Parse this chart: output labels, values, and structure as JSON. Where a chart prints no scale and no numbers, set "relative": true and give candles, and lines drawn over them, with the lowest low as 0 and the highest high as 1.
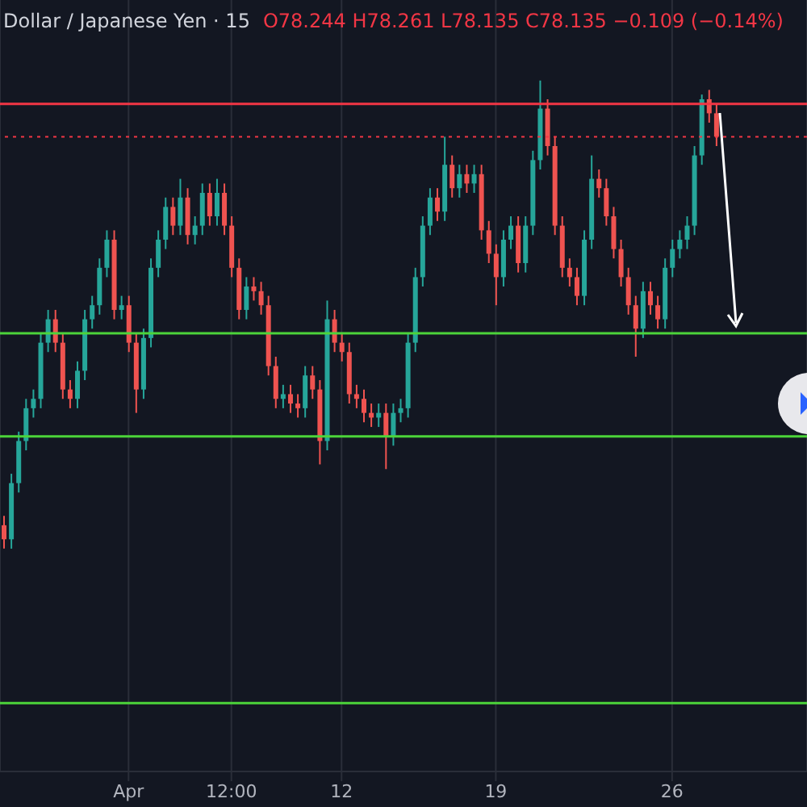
{
  "chart_data": {
    "type": "candlestick",
    "title": "Dollar / Japanese Yen · 15",
    "annotations": [
      "O78.244 H78.261 L78.135 C78.135 −0.109 (−0.14%)"
    ],
    "relative": true,
    "grid": "x",
    "categories": [
      null,
      null,
      null,
      null,
      null,
      null,
      null,
      null,
      null,
      null,
      null,
      null,
      null,
      null,
      null,
      null,
      null,
      "Apr",
      null,
      null,
      null,
      null,
      null,
      null,
      null,
      null,
      null,
      null,
      null,
      null,
      null,
      "12:00",
      null,
      null,
      null,
      null,
      null,
      null,
      null,
      null,
      null,
      null,
      null,
      null,
      null,
      null,
      "12",
      null,
      null,
      null,
      null,
      null,
      null,
      null,
      null,
      null,
      null,
      null,
      null,
      null,
      null,
      null,
      null,
      null,
      null,
      null,
      null,
      "19",
      null,
      null,
      null,
      null,
      null,
      null,
      null,
      null,
      null,
      null,
      null,
      null,
      null,
      null,
      null,
      null,
      null,
      null,
      null,
      null,
      null,
      null,
      null,
      "26",
      null,
      null,
      null,
      null,
      null,
      null
    ],
    "ohlc": [
      [
        0.05,
        0.07,
        0,
        0.02
      ],
      [
        0.02,
        0.16,
        0,
        0.14
      ],
      [
        0.14,
        0.25,
        0.12,
        0.23
      ],
      [
        0.23,
        0.32,
        0.21,
        0.3
      ],
      [
        0.3,
        0.34,
        0.28,
        0.32
      ],
      [
        0.32,
        0.46,
        0.3,
        0.44
      ],
      [
        0.44,
        0.51,
        0.42,
        0.49
      ],
      [
        0.49,
        0.51,
        0.42,
        0.44
      ],
      [
        0.44,
        0.46,
        0.32,
        0.34
      ],
      [
        0.34,
        0.36,
        0.3,
        0.32
      ],
      [
        0.32,
        0.4,
        0.3,
        0.38
      ],
      [
        0.38,
        0.51,
        0.36,
        0.49
      ],
      [
        0.49,
        0.54,
        0.47,
        0.52
      ],
      [
        0.52,
        0.62,
        0.5,
        0.6
      ],
      [
        0.6,
        0.68,
        0.58,
        0.66
      ],
      [
        0.66,
        0.68,
        0.49,
        0.51
      ],
      [
        0.51,
        0.54,
        0.49,
        0.52
      ],
      [
        0.52,
        0.54,
        0.42,
        0.44
      ],
      [
        0.44,
        0.46,
        0.29,
        0.34
      ],
      [
        0.34,
        0.47,
        0.32,
        0.45
      ],
      [
        0.45,
        0.62,
        0.43,
        0.6
      ],
      [
        0.6,
        0.68,
        0.58,
        0.66
      ],
      [
        0.66,
        0.75,
        0.64,
        0.73
      ],
      [
        0.73,
        0.75,
        0.67,
        0.69
      ],
      [
        0.69,
        0.79,
        0.67,
        0.75
      ],
      [
        0.75,
        0.77,
        0.65,
        0.67
      ],
      [
        0.67,
        0.71,
        0.65,
        0.69
      ],
      [
        0.69,
        0.78,
        0.67,
        0.76
      ],
      [
        0.76,
        0.78,
        0.69,
        0.71
      ],
      [
        0.71,
        0.79,
        0.69,
        0.76
      ],
      [
        0.76,
        0.78,
        0.67,
        0.69
      ],
      [
        0.69,
        0.71,
        0.58,
        0.6
      ],
      [
        0.6,
        0.62,
        0.49,
        0.51
      ],
      [
        0.51,
        0.58,
        0.49,
        0.56
      ],
      [
        0.56,
        0.58,
        0.53,
        0.55
      ],
      [
        0.55,
        0.57,
        0.5,
        0.52
      ],
      [
        0.52,
        0.54,
        0.37,
        0.39
      ],
      [
        0.39,
        0.41,
        0.3,
        0.32
      ],
      [
        0.32,
        0.35,
        0.3,
        0.33
      ],
      [
        0.33,
        0.35,
        0.29,
        0.31
      ],
      [
        0.31,
        0.33,
        0.28,
        0.3
      ],
      [
        0.3,
        0.39,
        0.28,
        0.37
      ],
      [
        0.37,
        0.39,
        0.32,
        0.34
      ],
      [
        0.34,
        0.36,
        0.18,
        0.23
      ],
      [
        0.23,
        0.53,
        0.21,
        0.49
      ],
      [
        0.49,
        0.51,
        0.42,
        0.44
      ],
      [
        0.44,
        0.46,
        0.4,
        0.42
      ],
      [
        0.42,
        0.44,
        0.31,
        0.33
      ],
      [
        0.33,
        0.35,
        0.3,
        0.32
      ],
      [
        0.32,
        0.34,
        0.27,
        0.29
      ],
      [
        0.29,
        0.31,
        0.26,
        0.28
      ],
      [
        0.28,
        0.31,
        0.26,
        0.29
      ],
      [
        0.29,
        0.31,
        0.17,
        0.24
      ],
      [
        0.24,
        0.31,
        0.22,
        0.29
      ],
      [
        0.29,
        0.32,
        0.27,
        0.3
      ],
      [
        0.3,
        0.46,
        0.28,
        0.44
      ],
      [
        0.44,
        0.6,
        0.42,
        0.58
      ],
      [
        0.58,
        0.71,
        0.56,
        0.69
      ],
      [
        0.69,
        0.77,
        0.67,
        0.75
      ],
      [
        0.75,
        0.77,
        0.7,
        0.72
      ],
      [
        0.72,
        0.88,
        0.7,
        0.82
      ],
      [
        0.82,
        0.84,
        0.75,
        0.77
      ],
      [
        0.77,
        0.82,
        0.75,
        0.8
      ],
      [
        0.8,
        0.82,
        0.76,
        0.78
      ],
      [
        0.78,
        0.82,
        0.76,
        0.8
      ],
      [
        0.8,
        0.82,
        0.66,
        0.68
      ],
      [
        0.68,
        0.7,
        0.61,
        0.63
      ],
      [
        0.63,
        0.65,
        0.52,
        0.58
      ],
      [
        0.58,
        0.68,
        0.56,
        0.66
      ],
      [
        0.66,
        0.71,
        0.64,
        0.69
      ],
      [
        0.69,
        0.71,
        0.59,
        0.61
      ],
      [
        0.61,
        0.71,
        0.59,
        0.69
      ],
      [
        0.69,
        0.85,
        0.67,
        0.83
      ],
      [
        0.83,
        1,
        0.81,
        0.94
      ],
      [
        0.94,
        0.96,
        0.84,
        0.86
      ],
      [
        0.86,
        0.88,
        0.67,
        0.69
      ],
      [
        0.69,
        0.71,
        0.58,
        0.6
      ],
      [
        0.6,
        0.62,
        0.56,
        0.58
      ],
      [
        0.58,
        0.6,
        0.52,
        0.54
      ],
      [
        0.54,
        0.68,
        0.52,
        0.66
      ],
      [
        0.66,
        0.84,
        0.64,
        0.79
      ],
      [
        0.79,
        0.81,
        0.75,
        0.77
      ],
      [
        0.77,
        0.79,
        0.69,
        0.71
      ],
      [
        0.71,
        0.73,
        0.62,
        0.64
      ],
      [
        0.64,
        0.66,
        0.56,
        0.58
      ],
      [
        0.58,
        0.6,
        0.5,
        0.52
      ],
      [
        0.52,
        0.54,
        0.41,
        0.47
      ],
      [
        0.47,
        0.57,
        0.45,
        0.55
      ],
      [
        0.55,
        0.57,
        0.5,
        0.52
      ],
      [
        0.52,
        0.54,
        0.47,
        0.49
      ],
      [
        0.49,
        0.62,
        0.47,
        0.6
      ],
      [
        0.6,
        0.66,
        0.58,
        0.64
      ],
      [
        0.64,
        0.68,
        0.62,
        0.66
      ],
      [
        0.66,
        0.71,
        0.64,
        0.69
      ],
      [
        0.69,
        0.86,
        0.67,
        0.84
      ],
      [
        0.84,
        0.97,
        0.82,
        0.96
      ],
      [
        0.96,
        0.98,
        0.91,
        0.93
      ],
      [
        0.93,
        0.95,
        0.86,
        0.88
      ]
    ],
    "colors": [
      "#ef5350",
      "#26a69a",
      "#26a69a",
      "#26a69a",
      "#26a69a",
      "#26a69a",
      "#26a69a",
      "#ef5350",
      "#ef5350",
      "#ef5350",
      "#26a69a",
      "#26a69a",
      "#26a69a",
      "#26a69a",
      "#26a69a",
      "#ef5350",
      "#26a69a",
      "#ef5350",
      "#ef5350",
      "#26a69a",
      "#26a69a",
      "#26a69a",
      "#26a69a",
      "#ef5350",
      "#26a69a",
      "#ef5350",
      "#26a69a",
      "#26a69a",
      "#ef5350",
      "#26a69a",
      "#ef5350",
      "#ef5350",
      "#ef5350",
      "#26a69a",
      "#ef5350",
      "#ef5350",
      "#ef5350",
      "#ef5350",
      "#26a69a",
      "#ef5350",
      "#ef5350",
      "#26a69a",
      "#ef5350",
      "#ef5350",
      "#26a69a",
      "#ef5350",
      "#ef5350",
      "#ef5350",
      "#ef5350",
      "#ef5350",
      "#ef5350",
      "#26a69a",
      "#ef5350",
      "#26a69a",
      "#26a69a",
      "#26a69a",
      "#26a69a",
      "#26a69a",
      "#26a69a",
      "#ef5350",
      "#26a69a",
      "#ef5350",
      "#26a69a",
      "#ef5350",
      "#26a69a",
      "#ef5350",
      "#ef5350",
      "#ef5350",
      "#26a69a",
      "#26a69a",
      "#ef5350",
      "#26a69a",
      "#26a69a",
      "#26a69a",
      "#ef5350",
      "#ef5350",
      "#ef5350",
      "#ef5350",
      "#ef5350",
      "#26a69a",
      "#26a69a",
      "#ef5350",
      "#ef5350",
      "#ef5350",
      "#ef5350",
      "#ef5350",
      "#ef5350",
      "#26a69a",
      "#ef5350",
      "#ef5350",
      "#26a69a",
      "#26a69a",
      "#26a69a",
      "#26a69a",
      "#26a69a",
      "#26a69a",
      "#ef5350",
      "#ef5350"
    ],
    "ref_lines": [
      {
        "axis": "y",
        "value": 0.95,
        "color": "#f23645",
        "line_style": "solid"
      },
      {
        "axis": "y",
        "value": 0.88,
        "color": "#f23645",
        "line_style": "dotted"
      },
      {
        "axis": "y",
        "value": 0.46,
        "color": "#4cd43a",
        "line_style": "solid"
      },
      {
        "axis": "y",
        "value": 0.24,
        "color": "#4cd43a",
        "line_style": "solid"
      },
      {
        "axis": "y",
        "value": -0.33,
        "color": "#4cd43a",
        "line_style": "solid"
      }
    ]
  }
}
